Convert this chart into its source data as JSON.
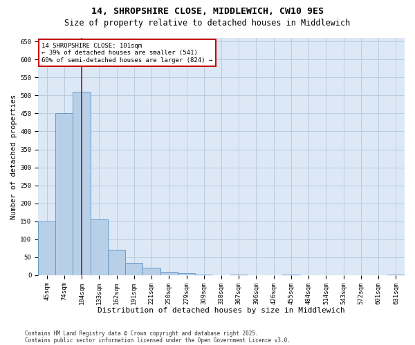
{
  "title1": "14, SHROPSHIRE CLOSE, MIDDLEWICH, CW10 9ES",
  "title2": "Size of property relative to detached houses in Middlewich",
  "xlabel": "Distribution of detached houses by size in Middlewich",
  "ylabel": "Number of detached properties",
  "categories": [
    "45sqm",
    "74sqm",
    "104sqm",
    "133sqm",
    "162sqm",
    "191sqm",
    "221sqm",
    "250sqm",
    "279sqm",
    "309sqm",
    "338sqm",
    "367sqm",
    "396sqm",
    "426sqm",
    "455sqm",
    "484sqm",
    "514sqm",
    "543sqm",
    "572sqm",
    "601sqm",
    "631sqm"
  ],
  "values": [
    150,
    450,
    510,
    155,
    70,
    35,
    20,
    10,
    5,
    2,
    0,
    1,
    0,
    0,
    1,
    0,
    0,
    0,
    0,
    0,
    1
  ],
  "bar_color": "#b8cfe8",
  "bar_edge_color": "#6699cc",
  "vline_color": "#cc0000",
  "vline_index": 2,
  "annotation_text": "14 SHROPSHIRE CLOSE: 101sqm\n← 39% of detached houses are smaller (541)\n60% of semi-detached houses are larger (824) →",
  "annotation_box_color": "#ffffff",
  "annotation_box_edge_color": "#cc0000",
  "ylim": [
    0,
    660
  ],
  "yticks": [
    0,
    50,
    100,
    150,
    200,
    250,
    300,
    350,
    400,
    450,
    500,
    550,
    600,
    650
  ],
  "footer1": "Contains HM Land Registry data © Crown copyright and database right 2025.",
  "footer2": "Contains public sector information licensed under the Open Government Licence v3.0.",
  "bg_color": "#ffffff",
  "plot_bg_color": "#dce8f5",
  "grid_color": "#b8cce0",
  "title1_fontsize": 9.5,
  "title2_fontsize": 8.5,
  "xlabel_fontsize": 8,
  "ylabel_fontsize": 7.5,
  "tick_fontsize": 6.5,
  "annot_fontsize": 6.5,
  "footer_fontsize": 5.5
}
